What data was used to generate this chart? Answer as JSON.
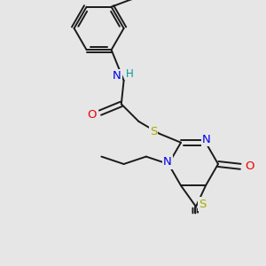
{
  "bg_color": "#e6e6e6",
  "bond_color": "#1a1a1a",
  "bond_width": 1.4,
  "atom_colors": {
    "N": "#0000ee",
    "O": "#ee0000",
    "S": "#aaaa00",
    "H": "#009999",
    "C": "#1a1a1a"
  },
  "font_size": 8.5,
  "fig_size": [
    3.0,
    3.0
  ],
  "dpi": 100
}
